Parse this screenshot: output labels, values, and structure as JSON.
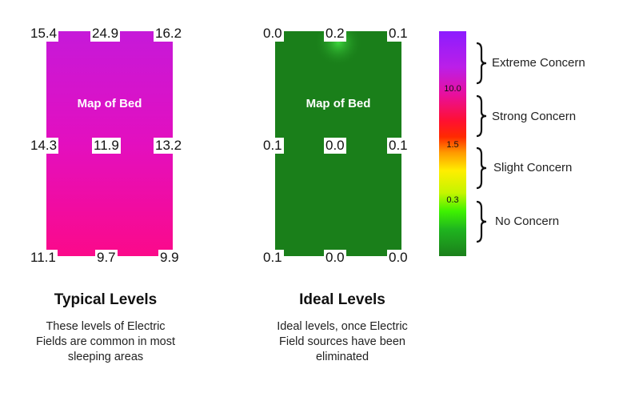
{
  "typical": {
    "bed_label": "Map of Bed",
    "readings": {
      "top_left": "15.4",
      "top_center": "24.9",
      "top_right": "16.2",
      "mid_left": "14.3",
      "mid_center": "11.9",
      "mid_right": "13.2",
      "bot_left": "11.1",
      "bot_center": "9.7",
      "bot_right": "9.9"
    },
    "heading": "Typical Levels",
    "description_lines": [
      "These levels of Electric",
      "Fields are common in most",
      "sleeping areas"
    ]
  },
  "ideal": {
    "bed_label": "Map of Bed",
    "readings": {
      "top_left": "0.0",
      "top_center": "0.2",
      "top_right": "0.1",
      "mid_left": "0.1",
      "mid_center": "0.0",
      "mid_right": "0.1",
      "bot_left": "0.1",
      "bot_center": "0.0",
      "bot_right": "0.0"
    },
    "heading": "Ideal Levels",
    "description_lines": [
      "Ideal levels, once Electric",
      "Field sources have been",
      "eliminated"
    ]
  },
  "legend": {
    "ticks": {
      "t10": "10.0",
      "t15": "1.5",
      "t03": "0.3"
    },
    "labels": {
      "extreme": "Extreme Concern",
      "strong": "Strong Concern",
      "slight": "Slight Concern",
      "none": "No Concern"
    },
    "colors": {
      "extreme": "#8c1cff",
      "strong": "#ff0000",
      "slight": "#ffee00",
      "none": "#1b7f1b"
    }
  }
}
